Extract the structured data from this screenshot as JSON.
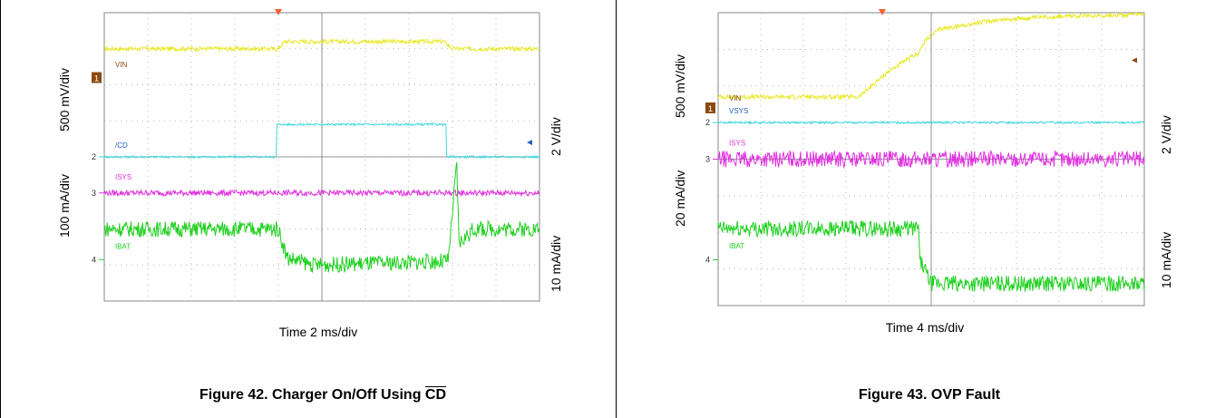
{
  "figures": [
    {
      "id": "fig42",
      "caption_prefix": "Figure 42. Charger On/Off Using ",
      "caption_overline": "CD",
      "time_label": "Time 2 ms/div",
      "left_labels": [
        "500 mV/div",
        "100 mA/div"
      ],
      "right_labels": [
        "2 V/div",
        "10 mA/div"
      ]
    },
    {
      "id": "fig43",
      "caption_prefix": "Figure 43. OVP Fault",
      "caption_overline": "",
      "time_label": "Time 4 ms/div",
      "left_labels": [
        "500 mV/div",
        "20 mA/div"
      ],
      "right_labels": [
        "2 V/div",
        "10 mA/div"
      ]
    }
  ],
  "chart_data": [
    {
      "type": "line",
      "title": "Figure 42. Charger On/Off Using CD",
      "xlabel": "Time 2 ms/div",
      "xlim": [
        0,
        10
      ],
      "ylim": [
        -4,
        4
      ],
      "grid": true,
      "channel_markers": [
        "1",
        "2",
        "3",
        "4"
      ],
      "series": [
        {
          "name": "VIN",
          "color": "#e8e820",
          "x": [
            0,
            4.0,
            4.15,
            7.8,
            8.0,
            10
          ],
          "y": [
            3.0,
            3.0,
            3.2,
            3.2,
            3.0,
            3.0
          ]
        },
        {
          "name": "/CD",
          "color": "#40d8e0",
          "x": [
            0,
            3.95,
            3.95,
            7.85,
            7.85,
            10
          ],
          "y": [
            0.0,
            0.0,
            0.9,
            0.9,
            0.0,
            0.0
          ]
        },
        {
          "name": "ISYS",
          "color": "#e030e0",
          "x": [
            0,
            10
          ],
          "y": [
            -1.0,
            -1.0
          ]
        },
        {
          "name": "IBAT",
          "color": "#20d020",
          "x": [
            0,
            4.0,
            4.2,
            4.8,
            7.9,
            8.1,
            8.15,
            8.5,
            10
          ],
          "y": [
            -2.0,
            -2.0,
            -2.8,
            -3.0,
            -2.9,
            -0.2,
            -2.4,
            -2.0,
            -2.0
          ]
        }
      ]
    },
    {
      "type": "line",
      "title": "Figure 43. OVP Fault",
      "xlabel": "Time 4 ms/div",
      "xlim": [
        0,
        10
      ],
      "ylim": [
        -4,
        4
      ],
      "grid": true,
      "channel_markers": [
        "1",
        "2",
        "3",
        "4"
      ],
      "series": [
        {
          "name": "VIN",
          "color": "#e8e820",
          "x": [
            0,
            3.3,
            4.0,
            4.7,
            4.9,
            5.2,
            6.5,
            8.0,
            10
          ],
          "y": [
            1.7,
            1.7,
            2.4,
            2.9,
            3.3,
            3.55,
            3.8,
            3.9,
            3.95
          ]
        },
        {
          "name": "VSYS",
          "color": "#40d8e0",
          "x": [
            0,
            10
          ],
          "y": [
            1.0,
            1.0
          ]
        },
        {
          "name": "ISYS",
          "color": "#e030e0",
          "x": [
            0,
            10
          ],
          "y": [
            0.0,
            0.0
          ]
        },
        {
          "name": "IBAT",
          "color": "#20d020",
          "x": [
            0,
            4.7,
            4.75,
            5.0,
            10
          ],
          "y": [
            -1.9,
            -1.9,
            -2.8,
            -3.4,
            -3.4
          ]
        }
      ]
    }
  ]
}
